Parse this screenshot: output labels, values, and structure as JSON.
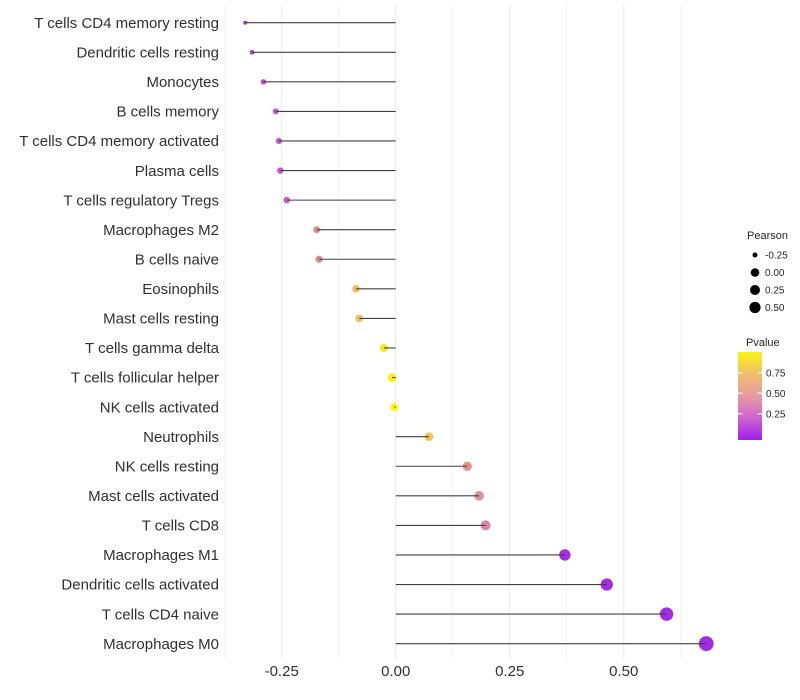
{
  "chart_data": {
    "type": "scatter",
    "subtype": "lollipop",
    "title": "",
    "xlabel": "",
    "ylabel": "",
    "x_tick_labels": [
      "-0.25",
      "0.00",
      "0.25",
      "0.50"
    ],
    "x_tick_values": [
      -0.25,
      0.0,
      0.25,
      0.5
    ],
    "x_minor_tick_values": [
      -0.375,
      -0.125,
      0.125,
      0.375,
      0.625
    ],
    "xlim": [
      -0.377,
      0.707
    ],
    "grid": "vertical gridlines only, no axis lines, no tick marks",
    "legend_position": "right",
    "points": [
      {
        "label": "T cells CD4 memory resting",
        "pearson": -0.33,
        "dot_color": "#B138D8",
        "dot_radius_px": 2.1
      },
      {
        "label": "Dendritic cells resting",
        "pearson": -0.315,
        "dot_color": "#B33CD6",
        "dot_radius_px": 2.4
      },
      {
        "label": "Monocytes",
        "pearson": -0.29,
        "dot_color": "#BC4BD1",
        "dot_radius_px": 2.7
      },
      {
        "label": "B cells memory",
        "pearson": -0.263,
        "dot_color": "#C355C9",
        "dot_radius_px": 3.0
      },
      {
        "label": "T cells CD4 memory activated",
        "pearson": -0.256,
        "dot_color": "#C458C8",
        "dot_radius_px": 3.1
      },
      {
        "label": "Plasma cells",
        "pearson": -0.253,
        "dot_color": "#C55AC7",
        "dot_radius_px": 3.2
      },
      {
        "label": "T cells regulatory  Tregs",
        "pearson": -0.239,
        "dot_color": "#C862C3",
        "dot_radius_px": 3.3
      },
      {
        "label": "Macrophages M2",
        "pearson": -0.173,
        "dot_color": "#DC8B8E",
        "dot_radius_px": 3.5
      },
      {
        "label": "B cells naive",
        "pearson": -0.168,
        "dot_color": "#DA8A91",
        "dot_radius_px": 3.6
      },
      {
        "label": "Eosinophils",
        "pearson": -0.087,
        "dot_color": "#EFBE62",
        "dot_radius_px": 3.8
      },
      {
        "label": "Mast cells resting",
        "pearson": -0.08,
        "dot_color": "#EEC168",
        "dot_radius_px": 3.9
      },
      {
        "label": "T cells gamma delta",
        "pearson": -0.026,
        "dot_color": "#F5EC1E",
        "dot_radius_px": 4.1
      },
      {
        "label": "T cells follicular helper",
        "pearson": -0.008,
        "dot_color": "#FBF405",
        "dot_radius_px": 4.3
      },
      {
        "label": "NK cells activated",
        "pearson": -0.003,
        "dot_color": "#FBF507",
        "dot_radius_px": 4.0
      },
      {
        "label": "Neutrophils",
        "pearson": 0.073,
        "dot_color": "#F2C64F",
        "dot_radius_px": 4.3
      },
      {
        "label": "NK cells resting",
        "pearson": 0.157,
        "dot_color": "#E29288",
        "dot_radius_px": 4.6
      },
      {
        "label": "Mast cells activated",
        "pearson": 0.183,
        "dot_color": "#DE8F9A",
        "dot_radius_px": 4.8
      },
      {
        "label": "T cells CD8",
        "pearson": 0.197,
        "dot_color": "#DA86A6",
        "dot_radius_px": 5.0
      },
      {
        "label": "Macrophages M1",
        "pearson": 0.371,
        "dot_color": "#A62CE2",
        "dot_radius_px": 5.7
      },
      {
        "label": "Dendritic cells activated",
        "pearson": 0.463,
        "dot_color": "#A42BE2",
        "dot_radius_px": 6.1
      },
      {
        "label": "T cells CD4 naive",
        "pearson": 0.594,
        "dot_color": "#A32BE1",
        "dot_radius_px": 6.7
      },
      {
        "label": "Macrophages M0",
        "pearson": 0.681,
        "dot_color": "#A32AE0",
        "dot_radius_px": 7.4
      }
    ],
    "legend_pearson": {
      "title": "Pearson",
      "entries": [
        {
          "label": "-0.25",
          "radius_px": 2.5
        },
        {
          "label": "0.00",
          "radius_px": 4.3
        },
        {
          "label": "0.25",
          "radius_px": 5.0
        },
        {
          "label": "0.50",
          "radius_px": 5.6
        }
      ],
      "dot_color": "#000000"
    },
    "legend_pvalue": {
      "title": "Pvalue",
      "tick_labels": [
        "0.75",
        "0.50",
        "0.25"
      ],
      "gradient_stops_bottom_to_top": [
        "#A21EEE",
        "#CE63D2",
        "#E79AA2",
        "#F0BD6C",
        "#FAF513"
      ]
    },
    "colors": {
      "background": "#FFFFFF",
      "stem": "#404040",
      "axis_text": "#303030",
      "legend_text": "#262626",
      "grid_major": "#E9E9E9",
      "grid_minor": "#F4F4F4"
    }
  }
}
